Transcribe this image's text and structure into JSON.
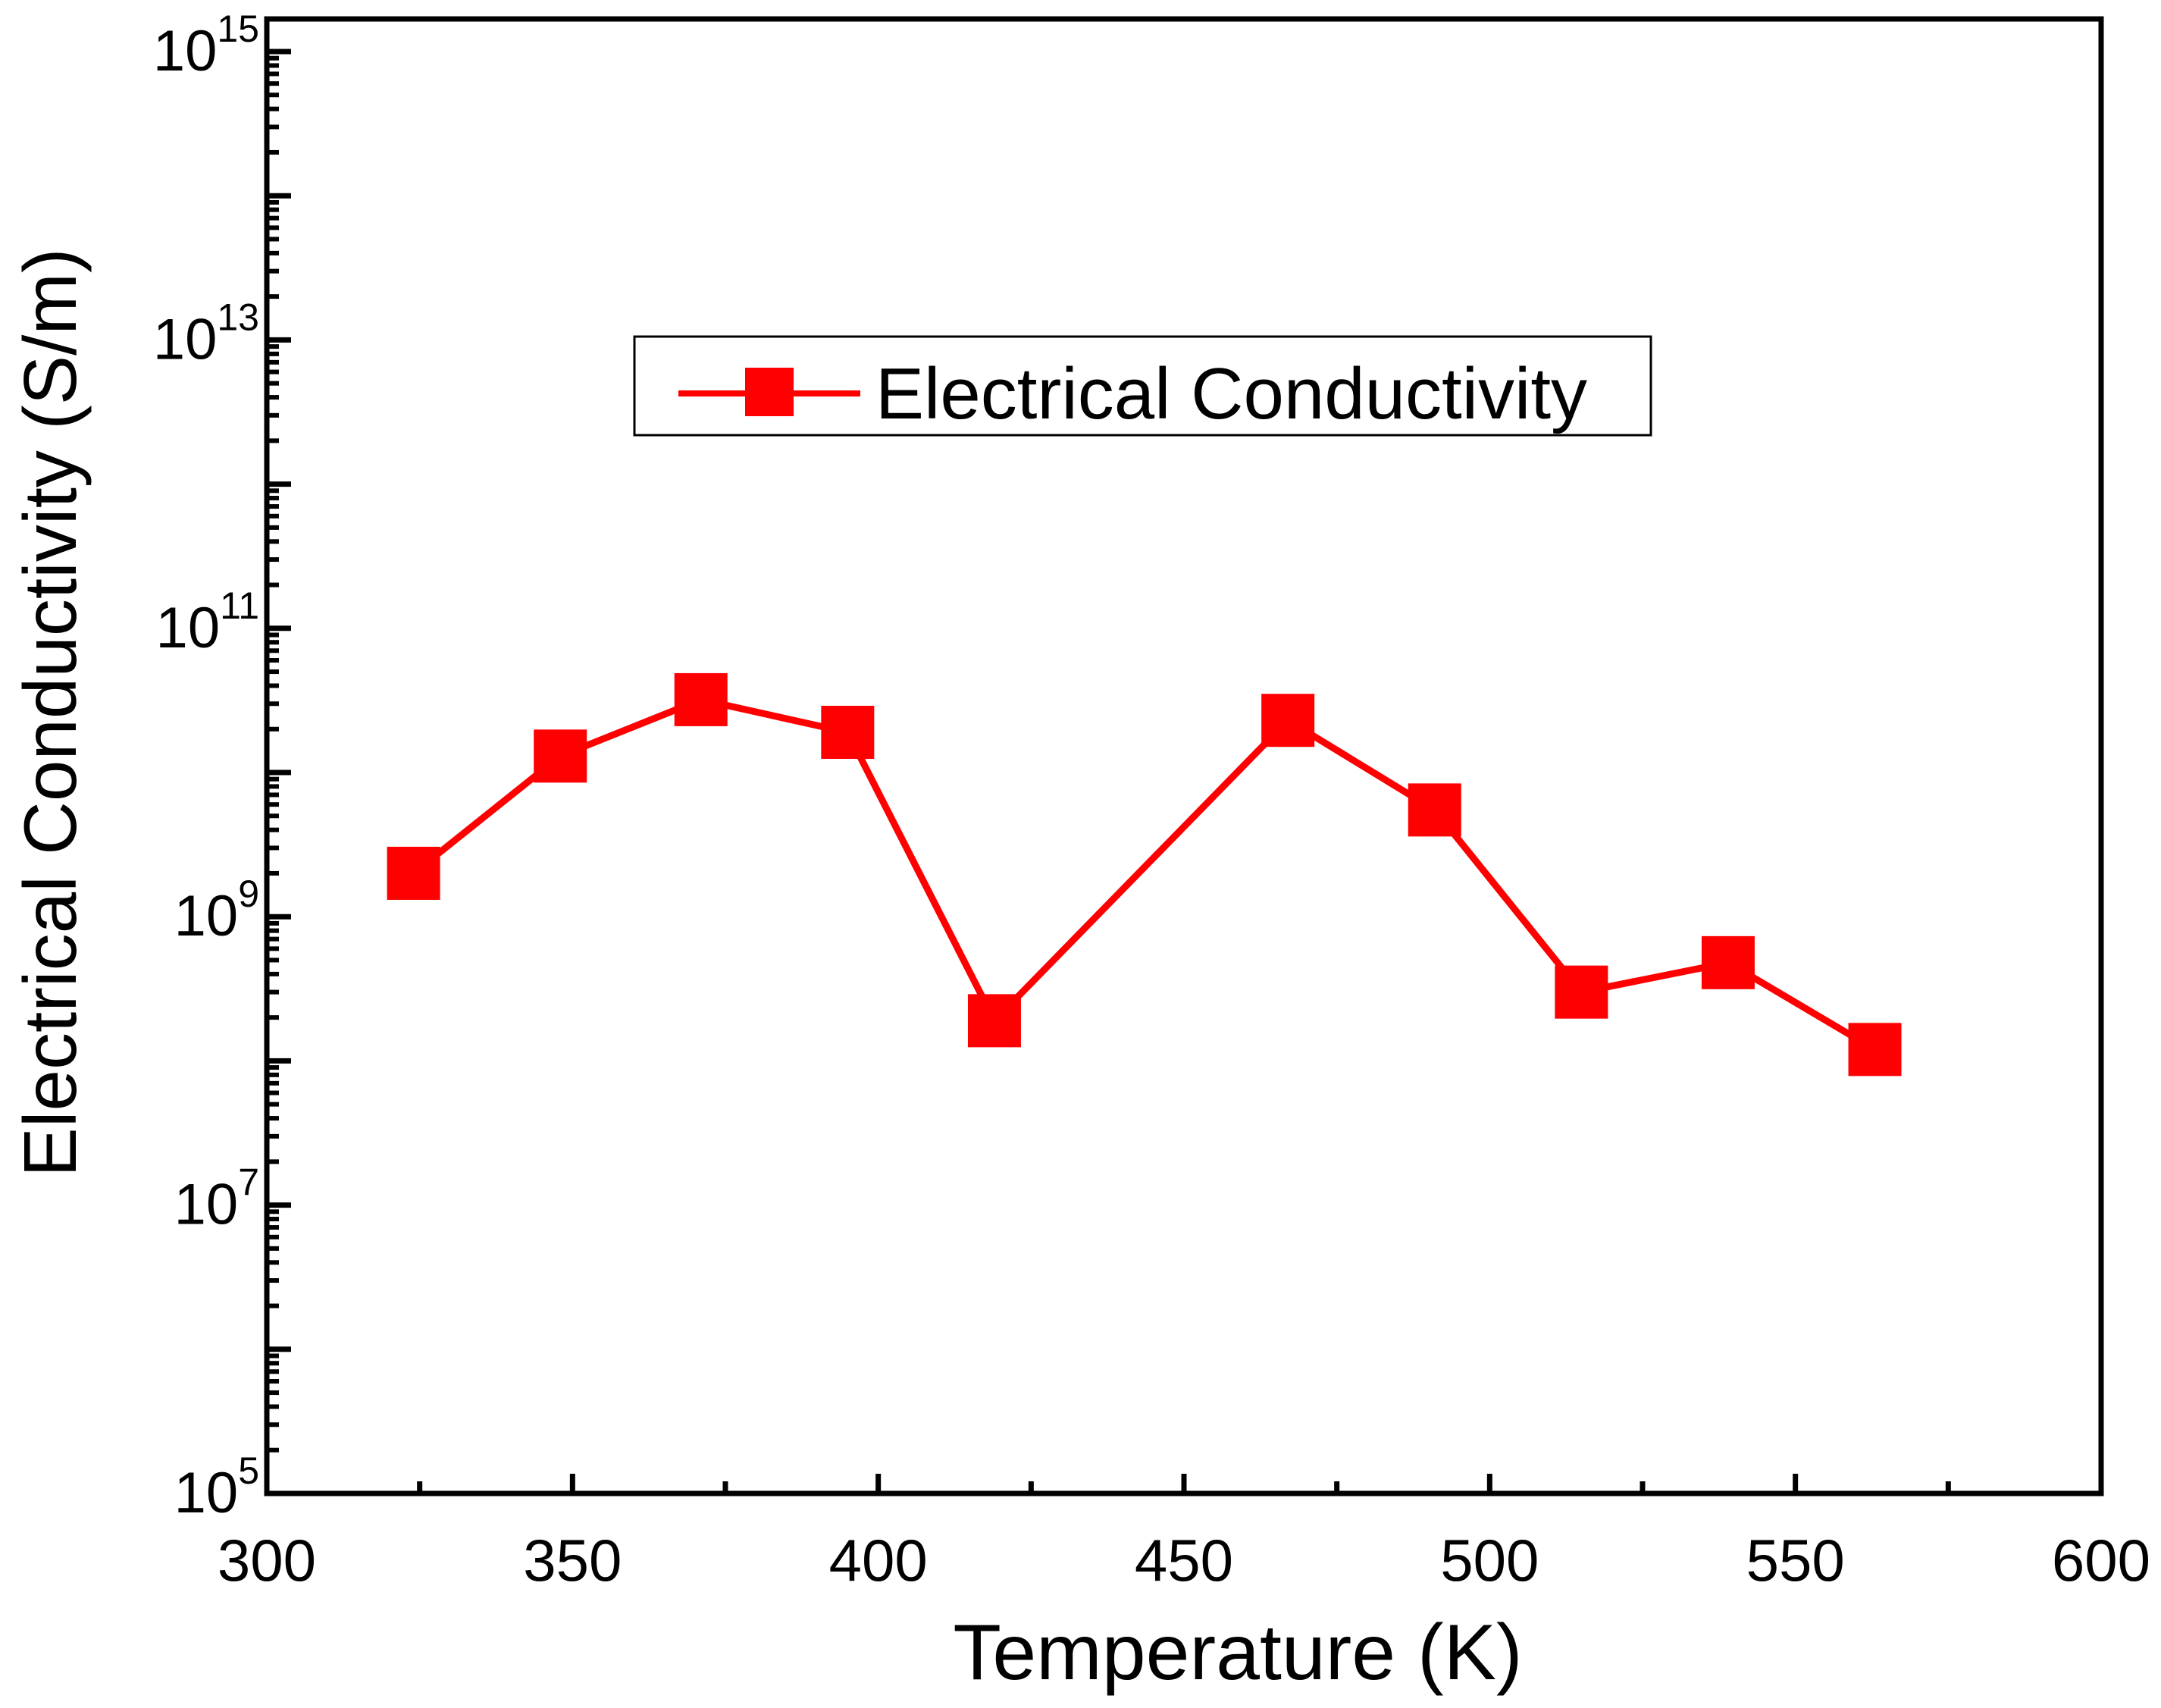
{
  "chart_data": {
    "type": "line",
    "title": "",
    "xlabel": "Temperature (K)",
    "ylabel": "Electrical Conductivity (S/m)",
    "xlim": [
      300,
      600
    ],
    "ylim": [
      100000,
      1000000000000000
    ],
    "yscale": "log",
    "x_ticks": [
      300,
      350,
      400,
      450,
      500,
      550,
      600
    ],
    "x_tick_labels": [
      "300",
      "350",
      "400",
      "450",
      "500",
      "550",
      "600"
    ],
    "y_ticks": [
      {
        "base": "10",
        "exp": "5",
        "value": 100000
      },
      {
        "base": "10",
        "exp": "7",
        "value": 10000000
      },
      {
        "base": "10",
        "exp": "9",
        "value": 1000000000
      },
      {
        "base": "10",
        "exp": "11",
        "value": 100000000000
      },
      {
        "base": "10",
        "exp": "13",
        "value": 10000000000000
      },
      {
        "base": "10",
        "exp": "15",
        "value": 1000000000000000
      }
    ],
    "legend": {
      "label": "Electrical Conductivity",
      "position": "upper-center"
    },
    "series": [
      {
        "name": "Electrical Conductivity",
        "color": "#ff0000",
        "marker": "square",
        "x": [
          324,
          348,
          371,
          395,
          419,
          467,
          491,
          515,
          539,
          563
        ],
        "values": [
          2000000000.0,
          13000000000.0,
          32000000000.0,
          19000000000.0,
          190000000.0,
          23000000000.0,
          5500000000.0,
          300000000.0,
          480000000.0,
          120000000.0
        ]
      }
    ]
  }
}
